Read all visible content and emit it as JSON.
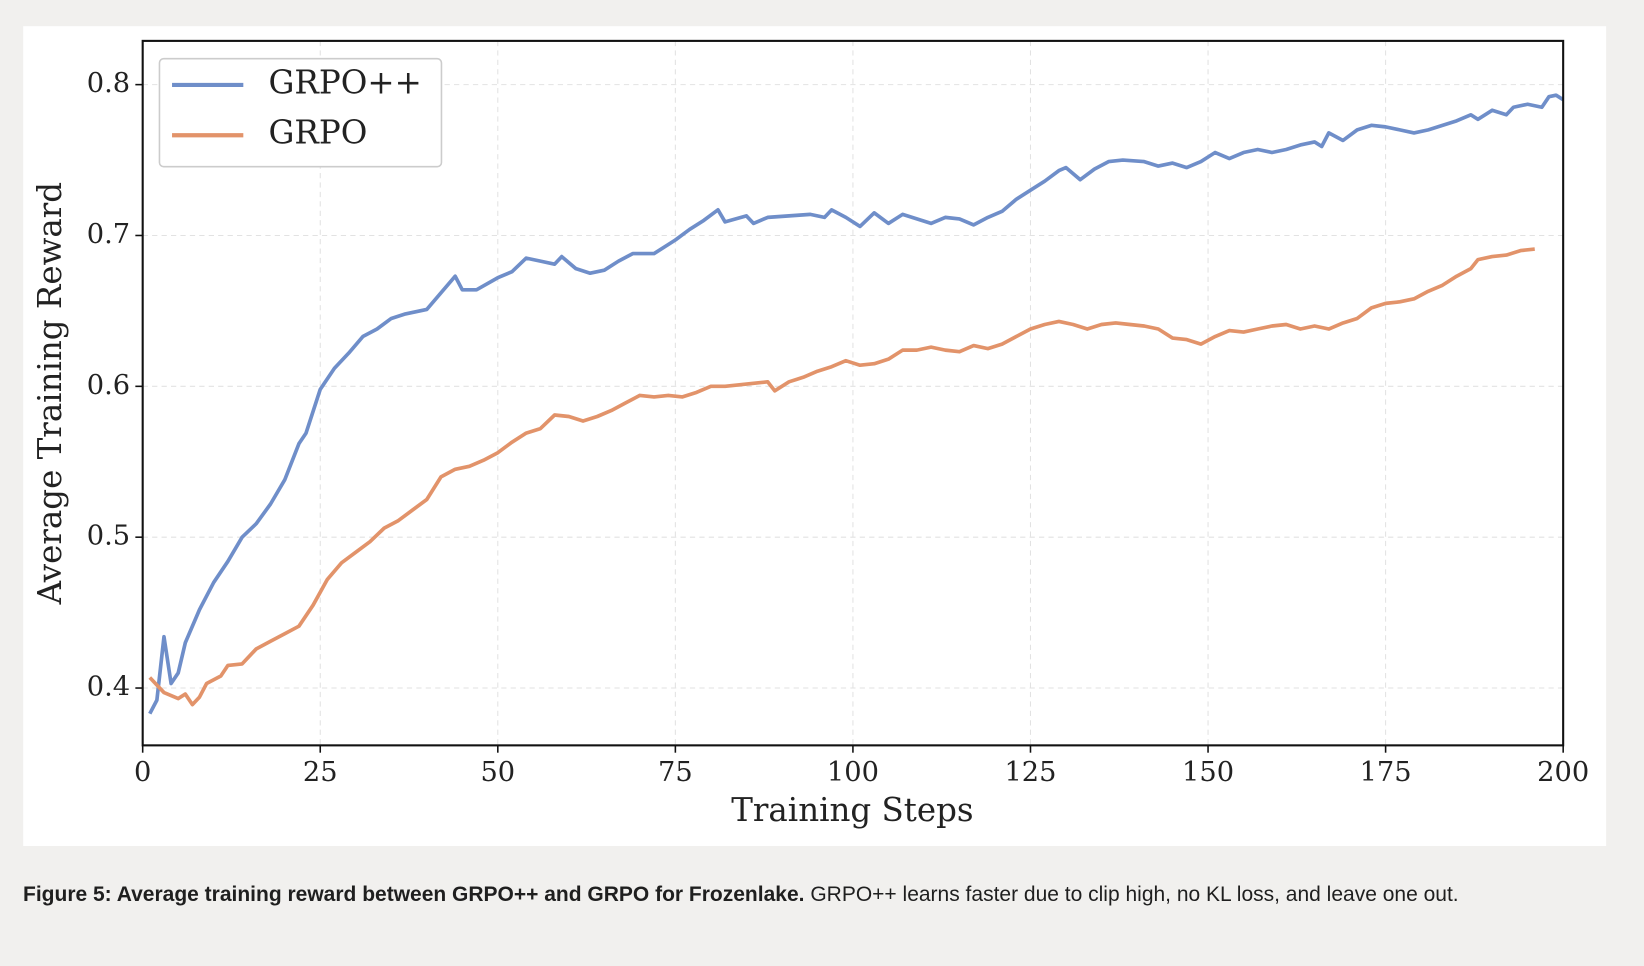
{
  "chart_data": {
    "type": "line",
    "xlabel": "Training Steps",
    "ylabel": "Average Training Reward",
    "xlim": [
      0,
      200
    ],
    "ylim": [
      0.362,
      0.829
    ],
    "xticks": [
      0,
      25,
      50,
      75,
      100,
      125,
      150,
      175,
      200
    ],
    "yticks": [
      0.4,
      0.5,
      0.6,
      0.7,
      0.8
    ],
    "grid": true,
    "legend": "upper left",
    "series": [
      {
        "name": "GRPO++",
        "color": "#6f8ec9",
        "x": [
          1,
          2,
          3,
          4,
          5,
          6,
          8,
          10,
          12,
          14,
          16,
          18,
          20,
          22,
          23,
          25,
          27,
          29,
          31,
          33,
          35,
          37,
          40,
          42,
          44,
          45,
          47,
          50,
          52,
          54,
          56,
          58,
          59,
          61,
          63,
          65,
          67,
          69,
          72,
          75,
          77,
          79,
          81,
          82,
          85,
          86,
          88,
          91,
          94,
          96,
          97,
          99,
          101,
          103,
          105,
          107,
          109,
          111,
          113,
          115,
          117,
          119,
          121,
          123,
          125,
          127,
          129,
          130,
          132,
          134,
          136,
          138,
          141,
          143,
          145,
          147,
          149,
          151,
          153,
          155,
          157,
          159,
          161,
          163,
          165,
          166,
          167,
          169,
          171,
          173,
          175,
          177,
          179,
          181,
          183,
          185,
          187,
          188,
          190,
          192,
          193,
          195,
          197,
          198,
          199,
          200
        ],
        "values": [
          0.383,
          0.392,
          0.434,
          0.403,
          0.41,
          0.43,
          0.452,
          0.47,
          0.484,
          0.5,
          0.509,
          0.522,
          0.538,
          0.562,
          0.569,
          0.598,
          0.612,
          0.622,
          0.633,
          0.638,
          0.645,
          0.648,
          0.651,
          0.662,
          0.673,
          0.664,
          0.664,
          0.672,
          0.676,
          0.685,
          0.683,
          0.681,
          0.686,
          0.678,
          0.675,
          0.677,
          0.683,
          0.688,
          0.688,
          0.697,
          0.704,
          0.71,
          0.717,
          0.709,
          0.713,
          0.708,
          0.712,
          0.713,
          0.714,
          0.712,
          0.717,
          0.712,
          0.706,
          0.715,
          0.708,
          0.714,
          0.711,
          0.708,
          0.712,
          0.711,
          0.707,
          0.712,
          0.716,
          0.724,
          0.73,
          0.736,
          0.743,
          0.745,
          0.737,
          0.744,
          0.749,
          0.75,
          0.749,
          0.746,
          0.748,
          0.745,
          0.749,
          0.755,
          0.751,
          0.755,
          0.757,
          0.755,
          0.757,
          0.76,
          0.762,
          0.759,
          0.768,
          0.763,
          0.77,
          0.773,
          0.772,
          0.77,
          0.768,
          0.77,
          0.773,
          0.776,
          0.78,
          0.777,
          0.783,
          0.78,
          0.785,
          0.787,
          0.785,
          0.792,
          0.793,
          0.79
        ]
      },
      {
        "name": "GRPO",
        "color": "#e2936a",
        "x": [
          1,
          3,
          5,
          6,
          7,
          8,
          9,
          11,
          12,
          14,
          16,
          18,
          20,
          22,
          24,
          26,
          28,
          30,
          32,
          34,
          36,
          38,
          40,
          42,
          44,
          46,
          48,
          50,
          52,
          54,
          56,
          58,
          60,
          62,
          64,
          66,
          68,
          70,
          72,
          74,
          76,
          78,
          80,
          82,
          84,
          86,
          88,
          89,
          91,
          93,
          95,
          97,
          99,
          101,
          103,
          105,
          107,
          109,
          111,
          113,
          115,
          117,
          119,
          121,
          123,
          125,
          127,
          129,
          131,
          133,
          135,
          137,
          139,
          141,
          143,
          145,
          147,
          149,
          151,
          153,
          155,
          157,
          159,
          161,
          163,
          165,
          167,
          169,
          171,
          173,
          175,
          177,
          179,
          181,
          183,
          185,
          187,
          188,
          190,
          192,
          194,
          196
        ],
        "values": [
          0.407,
          0.397,
          0.393,
          0.396,
          0.389,
          0.394,
          0.403,
          0.408,
          0.415,
          0.416,
          0.426,
          0.431,
          0.436,
          0.441,
          0.455,
          0.472,
          0.483,
          0.49,
          0.497,
          0.506,
          0.511,
          0.518,
          0.525,
          0.54,
          0.545,
          0.547,
          0.551,
          0.556,
          0.563,
          0.569,
          0.572,
          0.581,
          0.58,
          0.577,
          0.58,
          0.584,
          0.589,
          0.594,
          0.593,
          0.594,
          0.593,
          0.596,
          0.6,
          0.6,
          0.601,
          0.602,
          0.603,
          0.597,
          0.603,
          0.606,
          0.61,
          0.613,
          0.617,
          0.614,
          0.615,
          0.618,
          0.624,
          0.624,
          0.626,
          0.624,
          0.623,
          0.627,
          0.625,
          0.628,
          0.633,
          0.638,
          0.641,
          0.643,
          0.641,
          0.638,
          0.641,
          0.642,
          0.641,
          0.64,
          0.638,
          0.632,
          0.631,
          0.628,
          0.633,
          0.637,
          0.636,
          0.638,
          0.64,
          0.641,
          0.638,
          0.64,
          0.638,
          0.642,
          0.645,
          0.652,
          0.655,
          0.656,
          0.658,
          0.663,
          0.667,
          0.673,
          0.678,
          0.684,
          0.686,
          0.687,
          0.69,
          0.691
        ]
      }
    ]
  },
  "caption": {
    "bold": "Figure 5: Average training reward between GRPO++ and GRPO for Frozenlake.",
    "text": "GRPO++ learns faster due to clip high, no KL loss, and leave one out."
  }
}
